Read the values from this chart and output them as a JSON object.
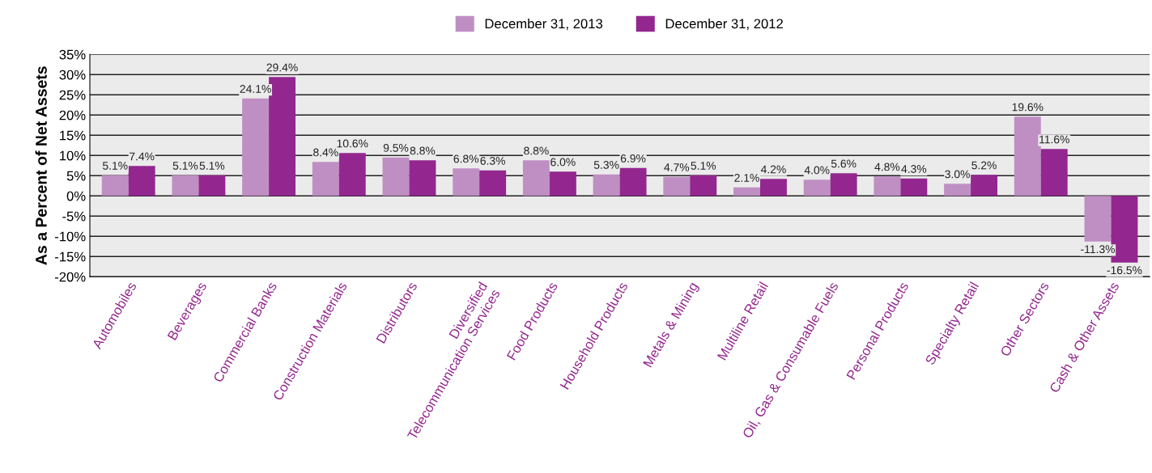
{
  "chart_data": {
    "type": "bar",
    "ylabel": "As a Percent of Net Assets",
    "categories": [
      "Automobiles",
      "Beverages",
      "Commercial Banks",
      "Construction Materials",
      "Distributors",
      "Diversified\nTelecommunication Services",
      "Food Products",
      "Household Products",
      "Metals & Mining",
      "Multiline Retail",
      "Oil, Gas & Consumable Fuels",
      "Personal Products",
      "Specialty Retail",
      "Other Sectors",
      "Cash & Other Assets"
    ],
    "series": [
      {
        "name": "December 31, 2013",
        "color": "#bf8fc4",
        "values": [
          5.1,
          5.1,
          24.1,
          8.4,
          9.5,
          6.8,
          8.8,
          5.3,
          4.7,
          2.1,
          4.0,
          4.8,
          3.0,
          19.6,
          -11.3
        ],
        "value_labels": [
          "5.1%",
          "5.1%",
          "24.1%",
          "8.4%",
          "9.5%",
          "6.8%",
          "8.8%",
          "5.3%",
          "4.7%",
          "2.1%",
          "4.0%",
          "4.8%",
          "3.0%",
          "19.6%",
          "-11.3%"
        ]
      },
      {
        "name": "December 31, 2012",
        "color": "#93278f",
        "values": [
          7.4,
          5.1,
          29.4,
          10.6,
          8.8,
          6.3,
          6.0,
          6.9,
          5.1,
          4.2,
          5.6,
          4.3,
          5.2,
          11.6,
          -16.5
        ],
        "value_labels": [
          "7.4%",
          "5.1%",
          "29.4%",
          "10.6%",
          "8.8%",
          "6.3%",
          "6.0%",
          "6.9%",
          "5.1%",
          "4.2%",
          "5.6%",
          "4.3%",
          "5.2%",
          "11.6%",
          "-16.5%"
        ]
      }
    ],
    "ylim": [
      -20,
      35
    ],
    "yticks": [
      {
        "value": -20,
        "label": "-20%"
      },
      {
        "value": -15,
        "label": "-15%"
      },
      {
        "value": -10,
        "label": "-10%"
      },
      {
        "value": -5,
        "label": "-5%"
      },
      {
        "value": 0,
        "label": "0%"
      },
      {
        "value": 5,
        "label": "5%"
      },
      {
        "value": 10,
        "label": "10%"
      },
      {
        "value": 15,
        "label": "15%"
      },
      {
        "value": 20,
        "label": "20%"
      },
      {
        "value": 25,
        "label": "25%"
      },
      {
        "value": 30,
        "label": "30%"
      },
      {
        "value": 35,
        "label": "35%"
      }
    ],
    "grid": "y",
    "legend": "top"
  }
}
